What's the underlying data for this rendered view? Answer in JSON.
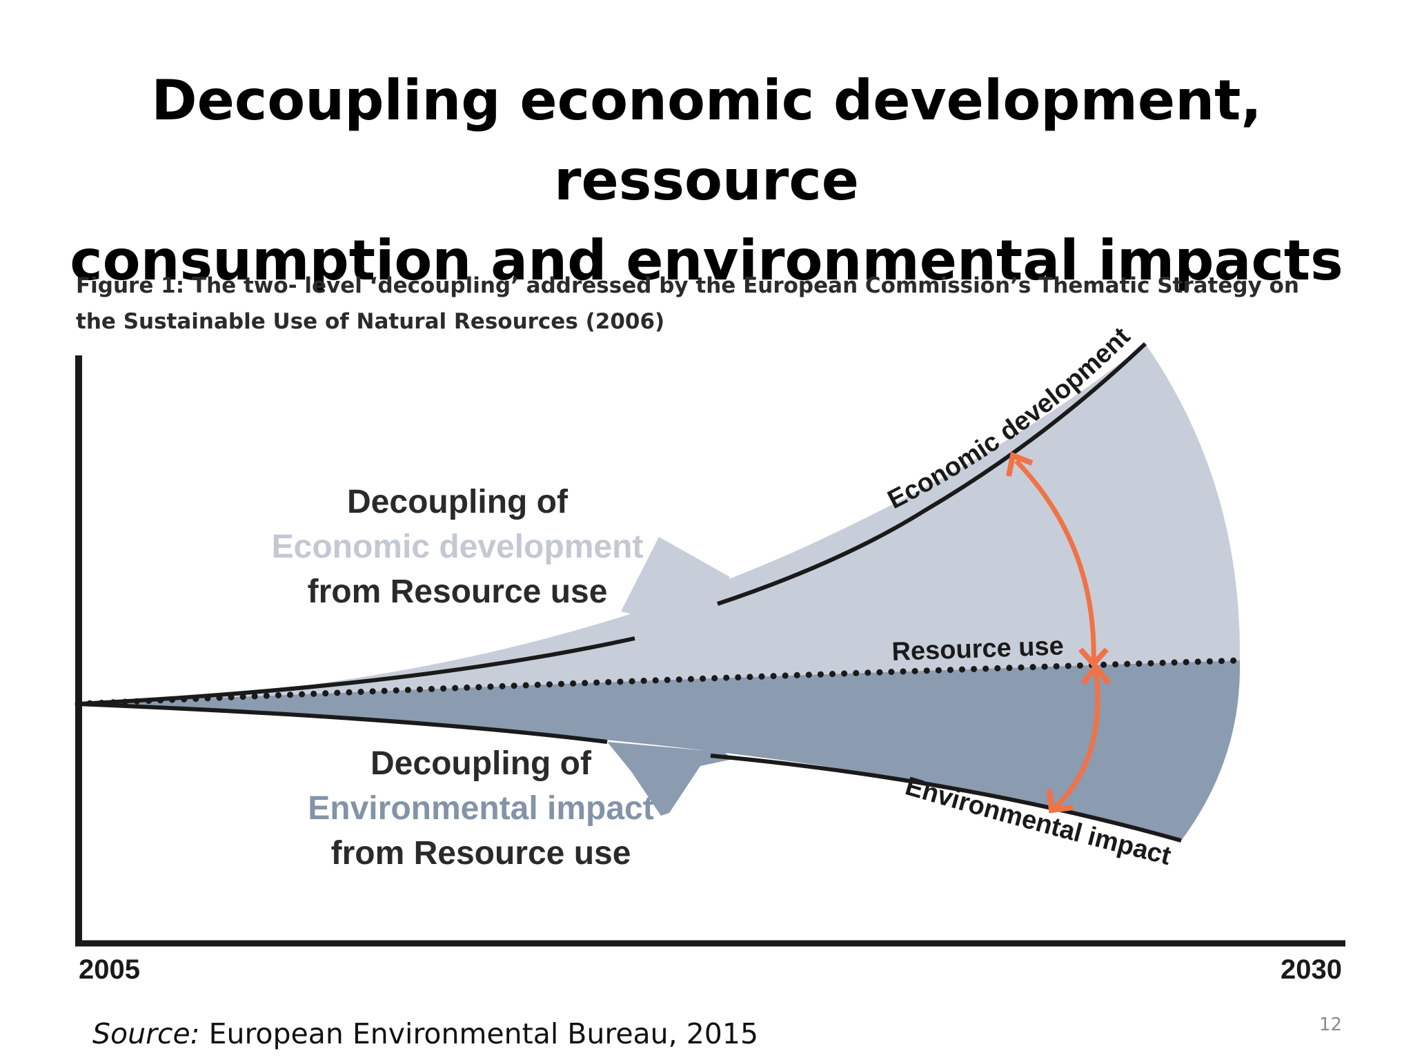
{
  "slide": {
    "title_line1": "Decoupling economic development, ressource",
    "title_line2": "consumption  and environmental impacts",
    "page_number": "12"
  },
  "figure": {
    "caption_line1": "Figure 1: The two- level ‘decoupling’ addressed by the European Commission’s Thematic Strategy on",
    "caption_line2": "the Sustainable Use of Natural Resources (2006)",
    "axis": {
      "start_label": "2005",
      "end_label": "2030"
    },
    "curves": {
      "economic": "Economic development",
      "resource": "Resource use",
      "environmental": "Environmental impact"
    },
    "upper_block": {
      "line1": "Decoupling of",
      "line2": "Economic development",
      "line3": "from Resource use"
    },
    "lower_block": {
      "line1": "Decoupling of",
      "line2": "Environmental impact",
      "line3": "from Resource use"
    },
    "colors": {
      "upper_fill": "#c8ced9",
      "lower_fill": "#8b9bb0",
      "upper_text": "#c3c8d2",
      "lower_text": "#8393a8",
      "arrow": "#f07347",
      "ink": "#1a1a1a"
    }
  },
  "source": {
    "prefix": "Source:",
    "text": " European Environmental Bureau, 2015"
  }
}
